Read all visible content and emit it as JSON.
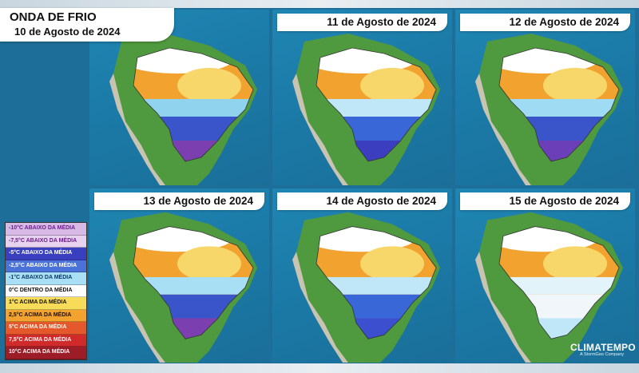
{
  "title": {
    "main": "ONDA DE FRIO",
    "date": "10 de Agosto de 2024"
  },
  "panels": [
    {
      "date": "",
      "south": "#7b3fb0",
      "mid": "#3a54c9",
      "band": "#8fd3ef"
    },
    {
      "date": "11 de Agosto de 2024",
      "south": "#3b3fbf",
      "mid": "#3a67d8",
      "band": "#bfe7f7"
    },
    {
      "date": "12 de Agosto de 2024",
      "south": "#6b3fb8",
      "mid": "#3a54c9",
      "band": "#9fdcf3"
    },
    {
      "date": "13 de Agosto de 2024",
      "south": "#7b3fb0",
      "mid": "#3a54c9",
      "band": "#a9dff4"
    },
    {
      "date": "14 de Agosto de 2024",
      "south": "#3b4fcf",
      "mid": "#3a67d8",
      "band": "#bfe7f7"
    },
    {
      "date": "15 de Agosto de 2024",
      "south": "#bfe7f7",
      "mid": "#f0f6f9",
      "band": "#e2f3fa"
    }
  ],
  "legend": {
    "items": [
      {
        "label": "-10°C ABAIXO DA MÉDIA",
        "color": "#d7b9e6",
        "text_color": "#6b1f8a"
      },
      {
        "label": "-7,5°C ABAIXO DA MÉDIA",
        "color": "#e6d2ee",
        "text_color": "#6b1f8a"
      },
      {
        "label": "-5°C ABAIXO DA MÉDIA",
        "color": "#3a3fc0",
        "text_color": "#ffffff"
      },
      {
        "label": "-2,5°C ABAIXO DA MÉDIA",
        "color": "#4a72d9",
        "text_color": "#ffffff"
      },
      {
        "label": "-1°C ABAIXO DA MÉDIA",
        "color": "#a9dff4",
        "text_color": "#0d3a66"
      },
      {
        "label": "0°C DENTRO DA MÉDIA",
        "color": "#ffffff",
        "text_color": "#111111"
      },
      {
        "label": "1°C ACIMA DA MÉDIA",
        "color": "#f7dc5a",
        "text_color": "#111111"
      },
      {
        "label": "2,5°C ACIMA DA MÉDIA",
        "color": "#f2a22f",
        "text_color": "#111111"
      },
      {
        "label": "5°C ACIMA DA MÉDIA",
        "color": "#e4582b",
        "text_color": "#ffffff"
      },
      {
        "label": "7,5°C ACIMA DA MÉDIA",
        "color": "#d02a2a",
        "text_color": "#ffffff"
      },
      {
        "label": "10°C ACIMA DA MÉDIA",
        "color": "#9c1c27",
        "text_color": "#ffffff"
      }
    ]
  },
  "logo": {
    "name": "CLIMATEMPO",
    "tagline": "A StormGeo Company"
  },
  "colors": {
    "ocean": "#1b79a6",
    "land_green": "#4f9a3e",
    "andes": "#c9c3b2",
    "warm": "#f2a22f",
    "warm_light": "#f7d66a",
    "normal": "#ffffff"
  }
}
